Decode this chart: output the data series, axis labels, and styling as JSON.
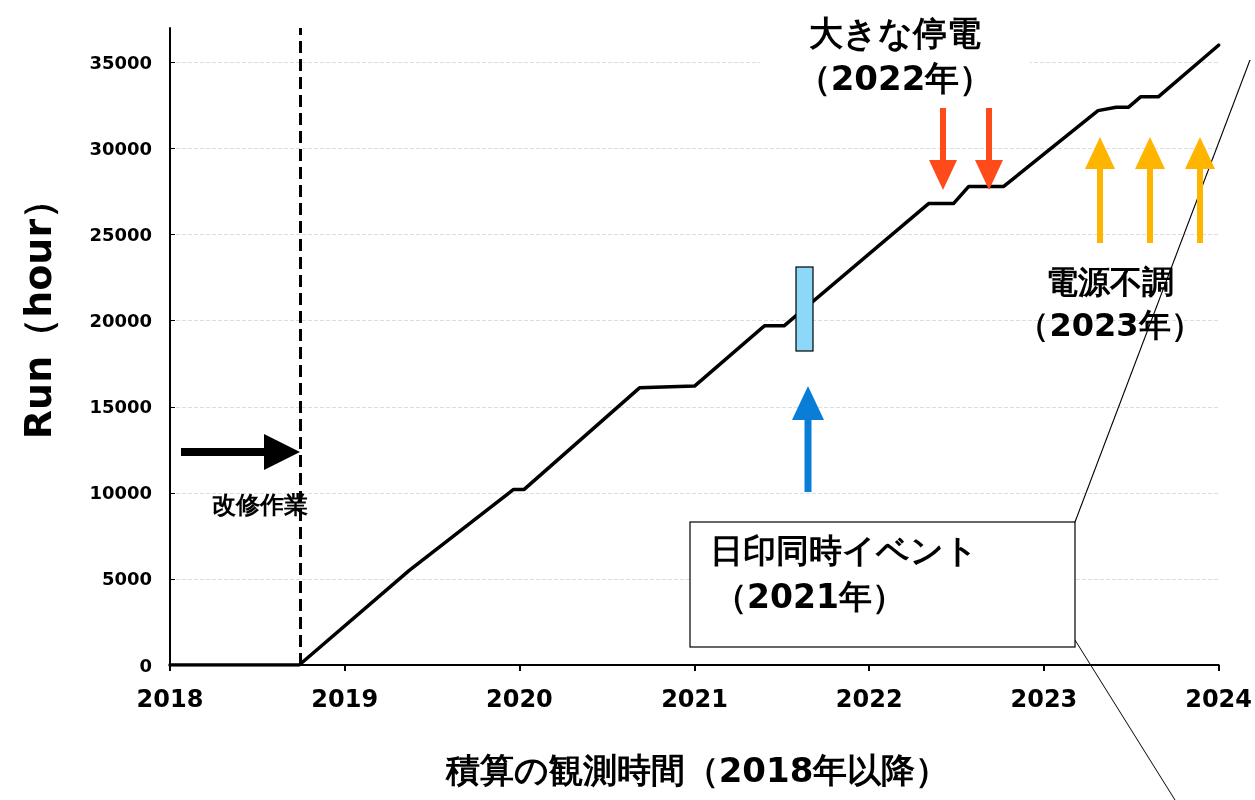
{
  "chart_data": {
    "type": "line",
    "xlabel": "積算の観測時間（2018年以降）",
    "ylabel": "Run（hour）",
    "x": [
      "2018-01-01",
      "2018-09-28",
      "2019-05-16",
      "2019-12-20",
      "2020-01-11",
      "2020-09-08",
      "2021-01-01",
      "2021-05-27",
      "2021-07-07",
      "2022-05-05",
      "2022-06-26",
      "2022-07-28",
      "2022-10-09",
      "2023-04-24",
      "2023-06-01",
      "2023-06-27",
      "2023-07-22",
      "2023-08-28",
      "2024-01-01"
    ],
    "series": [
      {
        "color": "#000000",
        "values": [
          0,
          0,
          5500,
          10200,
          10200,
          16100,
          16200,
          19700,
          19700,
          26800,
          26800,
          27800,
          27800,
          32200,
          32400,
          32400,
          33000,
          33000,
          36000
        ]
      }
    ],
    "xlim": [
      "2018-01-01",
      "2024-01-01"
    ],
    "xticks": [
      {
        "value": "2018-01-01",
        "label": "2018"
      },
      {
        "value": "2019-01-01",
        "label": "2019"
      },
      {
        "value": "2020-01-01",
        "label": "2020"
      },
      {
        "value": "2021-01-01",
        "label": "2021"
      },
      {
        "value": "2022-01-01",
        "label": "2022"
      },
      {
        "value": "2023-01-01",
        "label": "2023"
      },
      {
        "value": "2024-01-01",
        "label": "2024"
      }
    ],
    "ylim": [
      0,
      37000
    ],
    "yticks": [
      0,
      5000,
      10000,
      15000,
      20000,
      25000,
      30000,
      35000
    ],
    "grid": "y",
    "marker": "none",
    "line_style": "solid",
    "ref_lines": [
      {
        "axis": "x",
        "value": "2018-10-01",
        "label": "改修作業",
        "line_style": "dashed",
        "color": "#000000"
      }
    ],
    "annotations": [
      "大きな停電",
      "（2022年）",
      "電源不調",
      "（2023年）",
      "日印同時イベント",
      "（2021年）"
    ]
  }
}
